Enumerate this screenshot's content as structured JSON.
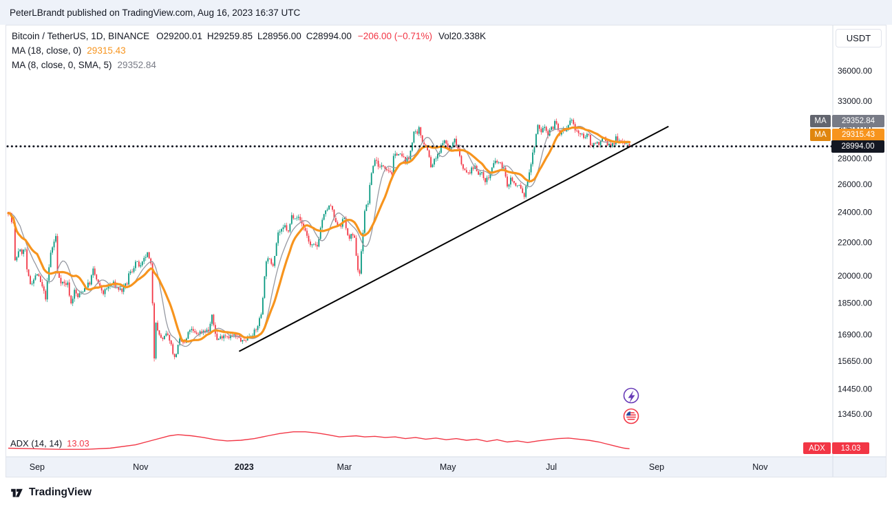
{
  "page": {
    "publish_line": "PeterLBrandt published on TradingView.com, Aug 16, 2023 16:37 UTC",
    "brand": "TradingView"
  },
  "header": {
    "symbol": "Bitcoin / TetherUS, 1D, BINANCE",
    "ohlc": {
      "o_label": "O",
      "o_value": "29200.01",
      "h_label": "H",
      "h_value": "29259.85",
      "l_label": "L",
      "l_value": "28956.00",
      "c_label": "C",
      "c_value": "28994.00"
    },
    "change": "−206.00 (−0.71%)",
    "volume_label": "Vol",
    "volume_value": "20.338K",
    "ma18_label": "MA (18, close, 0)",
    "ma18_value": "29315.43",
    "ma8_label": "MA (8, close, 0, SMA, 5)",
    "ma8_value": "29352.84"
  },
  "controls": {
    "currency_button": "USDT"
  },
  "adx_legend": {
    "label": "ADX (14, 14)",
    "value": "13.03"
  },
  "badges": {
    "ma8": {
      "label": "MA",
      "value": "29352.84",
      "color": "#787b86"
    },
    "ma18": {
      "label": "MA",
      "value": "29315.43",
      "color": "#f7941d"
    },
    "last_price": {
      "value": "28994.00",
      "color": "#131722"
    },
    "adx": {
      "label": "ADX",
      "value": "13.03",
      "color": "#f23645"
    }
  },
  "chart_data": {
    "type": "candlestick",
    "title": "Bitcoin / TetherUS, 1D, BINANCE",
    "scale": "log",
    "up_color": "#089981",
    "down_color": "#f23645",
    "price_ticks": [
      {
        "label": "36000.00",
        "price": 36000
      },
      {
        "label": "33000.00",
        "price": 33000
      },
      {
        "label": "30500.00",
        "price": 30500
      },
      {
        "label": "28000.00",
        "price": 28000
      },
      {
        "label": "26000.00",
        "price": 26000
      },
      {
        "label": "24000.00",
        "price": 24000
      },
      {
        "label": "22000.00",
        "price": 22000
      },
      {
        "label": "20000.00",
        "price": 20000
      },
      {
        "label": "18500.00",
        "price": 18500
      },
      {
        "label": "16900.00",
        "price": 16900
      },
      {
        "label": "15650.00",
        "price": 15650
      },
      {
        "label": "14450.00",
        "price": 14450
      },
      {
        "label": "13450.00",
        "price": 13450
      }
    ],
    "time_ticks": [
      {
        "label": "Sep",
        "day": 17
      },
      {
        "label": "Nov",
        "day": 78
      },
      {
        "label": "2023",
        "day": 139,
        "major": true
      },
      {
        "label": "Mar",
        "day": 198
      },
      {
        "label": "May",
        "day": 259
      },
      {
        "label": "Jul",
        "day": 320
      },
      {
        "label": "Sep",
        "day": 382
      },
      {
        "label": "Nov",
        "day": 443
      }
    ],
    "last": {
      "open": 29200.01,
      "high": 29259.85,
      "low": 28956.0,
      "close": 28994.0,
      "change": -206.0,
      "change_pct": -0.71,
      "volume": "20.338K"
    },
    "price_path": [
      [
        0,
        24095
      ],
      [
        1,
        23854
      ],
      [
        2,
        23342
      ],
      [
        3,
        23191
      ],
      [
        4,
        20834
      ],
      [
        5,
        21139
      ],
      [
        6,
        21516
      ],
      [
        8,
        21400
      ],
      [
        10,
        21559
      ],
      [
        11,
        20241
      ],
      [
        13,
        19556
      ],
      [
        15,
        19800
      ],
      [
        17,
        20130
      ],
      [
        20,
        19350
      ],
      [
        22,
        18790
      ],
      [
        25,
        21360
      ],
      [
        28,
        22395
      ],
      [
        29,
        20173
      ],
      [
        31,
        19701
      ],
      [
        33,
        19550
      ],
      [
        35,
        19536
      ],
      [
        37,
        18462
      ],
      [
        39,
        19150
      ],
      [
        41,
        18813
      ],
      [
        43,
        19078
      ],
      [
        46,
        19423
      ],
      [
        48,
        19600
      ],
      [
        50,
        20336
      ],
      [
        53,
        19500
      ],
      [
        56,
        19044
      ],
      [
        59,
        19382
      ],
      [
        62,
        19550
      ],
      [
        64,
        19328
      ],
      [
        67,
        19166
      ],
      [
        70,
        19570
      ],
      [
        71,
        20081
      ],
      [
        73,
        20290
      ],
      [
        75,
        20809
      ],
      [
        78,
        20500
      ],
      [
        81,
        21149
      ],
      [
        82,
        21298
      ],
      [
        84,
        20599
      ],
      [
        85,
        18541
      ],
      [
        86,
        15880
      ],
      [
        87,
        17586
      ],
      [
        88,
        17034
      ],
      [
        91,
        16618
      ],
      [
        93,
        16900
      ],
      [
        95,
        16700
      ],
      [
        98,
        15782
      ],
      [
        101,
        16602
      ],
      [
        104,
        16450
      ],
      [
        107,
        17163
      ],
      [
        110,
        16950
      ],
      [
        112,
        16966
      ],
      [
        115,
        17100
      ],
      [
        118,
        17088
      ],
      [
        120,
        17773
      ],
      [
        123,
        16632
      ],
      [
        127,
        16900
      ],
      [
        130,
        16820
      ],
      [
        133,
        16840
      ],
      [
        136,
        16700
      ],
      [
        138,
        16542
      ],
      [
        140,
        16690
      ],
      [
        142,
        16852
      ],
      [
        146,
        17091
      ],
      [
        149,
        17934
      ],
      [
        152,
        20954
      ],
      [
        154,
        20880
      ],
      [
        156,
        20677
      ],
      [
        159,
        22666
      ],
      [
        161,
        22720
      ],
      [
        163,
        23060
      ],
      [
        165,
        22630
      ],
      [
        167,
        23744
      ],
      [
        170,
        23723
      ],
      [
        172,
        23450
      ],
      [
        175,
        22760
      ],
      [
        178,
        21796
      ],
      [
        182,
        21774
      ],
      [
        185,
        23517
      ],
      [
        188,
        24250
      ],
      [
        190,
        24445
      ],
      [
        193,
        23180
      ],
      [
        196,
        23155
      ],
      [
        198,
        23628
      ],
      [
        200,
        22350
      ],
      [
        202,
        22410
      ],
      [
        204,
        22200
      ],
      [
        206,
        20360
      ],
      [
        207,
        20150
      ],
      [
        210,
        24130
      ],
      [
        212,
        24700
      ],
      [
        214,
        26907
      ],
      [
        216,
        27950
      ],
      [
        217,
        27767
      ],
      [
        219,
        27250
      ],
      [
        221,
        27450
      ],
      [
        224,
        27124
      ],
      [
        226,
        26850
      ],
      [
        227,
        28030
      ],
      [
        229,
        28450
      ],
      [
        232,
        28160
      ],
      [
        234,
        27800
      ],
      [
        236,
        27930
      ],
      [
        239,
        30230
      ],
      [
        241,
        29900
      ],
      [
        242,
        30480
      ],
      [
        244,
        29450
      ],
      [
        247,
        28820
      ],
      [
        249,
        27250
      ],
      [
        251,
        27800
      ],
      [
        254,
        28430
      ],
      [
        256,
        29480
      ],
      [
        258,
        29230
      ],
      [
        260,
        28650
      ],
      [
        263,
        29530
      ],
      [
        265,
        28850
      ],
      [
        267,
        27650
      ],
      [
        269,
        27000
      ],
      [
        270,
        26800
      ],
      [
        272,
        26950
      ],
      [
        275,
        27400
      ],
      [
        277,
        26880
      ],
      [
        279,
        26750
      ],
      [
        281,
        26330
      ],
      [
        283,
        26480
      ],
      [
        285,
        27230
      ],
      [
        287,
        27740
      ],
      [
        289,
        27650
      ],
      [
        292,
        27250
      ],
      [
        294,
        25740
      ],
      [
        296,
        26480
      ],
      [
        299,
        25850
      ],
      [
        301,
        25930
      ],
      [
        304,
        25120
      ],
      [
        306,
        26340
      ],
      [
        309,
        28310
      ],
      [
        311,
        29910
      ],
      [
        312,
        30690
      ],
      [
        314,
        30270
      ],
      [
        316,
        30690
      ],
      [
        318,
        30080
      ],
      [
        319,
        30470
      ],
      [
        321,
        30620
      ],
      [
        322,
        31160
      ],
      [
        324,
        30500
      ],
      [
        325,
        29900
      ],
      [
        327,
        30340
      ],
      [
        328,
        30170
      ],
      [
        330,
        30610
      ],
      [
        332,
        31460
      ],
      [
        334,
        30330
      ],
      [
        336,
        30140
      ],
      [
        338,
        29860
      ],
      [
        340,
        29900
      ],
      [
        342,
        29790
      ],
      [
        343,
        29180
      ],
      [
        345,
        29230
      ],
      [
        347,
        29320
      ],
      [
        349,
        29280
      ],
      [
        351,
        29700
      ],
      [
        353,
        29160
      ],
      [
        355,
        29050
      ],
      [
        357,
        29180
      ],
      [
        358,
        29770
      ],
      [
        360,
        29560
      ],
      [
        362,
        29400
      ],
      [
        364,
        29280
      ],
      [
        365,
        29170
      ],
      [
        366,
        28994
      ]
    ],
    "overlays": {
      "ma18_length": 18,
      "ma18_color": "#f7941d",
      "ma8_length": 8,
      "ma8_smoothing": "SMA 5",
      "ma8_color": "#9598a1",
      "trendline": {
        "from": [
          136,
          16100
        ],
        "to": [
          389,
          30700
        ],
        "color": "#000000"
      },
      "dotted_level": 28994,
      "dotted_color": "#131722"
    },
    "adx": {
      "params": "(14, 14)",
      "current": 13.03,
      "color": "#f23645",
      "points": [
        [
          0,
          14
        ],
        [
          15,
          13
        ],
        [
          30,
          12
        ],
        [
          45,
          12
        ],
        [
          60,
          14
        ],
        [
          75,
          20
        ],
        [
          85,
          28
        ],
        [
          95,
          36
        ],
        [
          100,
          38
        ],
        [
          108,
          36
        ],
        [
          115,
          33
        ],
        [
          122,
          29
        ],
        [
          129,
          27
        ],
        [
          137,
          28
        ],
        [
          145,
          31
        ],
        [
          153,
          36
        ],
        [
          160,
          40
        ],
        [
          168,
          43
        ],
        [
          175,
          43
        ],
        [
          182,
          41
        ],
        [
          188,
          38
        ],
        [
          195,
          34
        ],
        [
          200,
          35
        ],
        [
          205,
          36
        ],
        [
          210,
          34
        ],
        [
          216,
          35
        ],
        [
          222,
          33
        ],
        [
          228,
          34
        ],
        [
          234,
          31
        ],
        [
          240,
          33
        ],
        [
          246,
          30
        ],
        [
          252,
          32
        ],
        [
          258,
          29
        ],
        [
          264,
          31
        ],
        [
          270,
          28
        ],
        [
          276,
          30
        ],
        [
          282,
          26
        ],
        [
          288,
          29
        ],
        [
          294,
          25
        ],
        [
          300,
          27
        ],
        [
          306,
          24
        ],
        [
          312,
          27
        ],
        [
          318,
          29
        ],
        [
          324,
          31
        ],
        [
          330,
          32
        ],
        [
          336,
          30
        ],
        [
          342,
          28
        ],
        [
          348,
          25
        ],
        [
          352,
          22
        ],
        [
          356,
          19
        ],
        [
          360,
          16
        ],
        [
          363,
          14
        ],
        [
          366,
          13.03
        ]
      ]
    },
    "y_axis": {
      "type": "log",
      "top_price": 36000,
      "bottom_price": 13450
    }
  }
}
